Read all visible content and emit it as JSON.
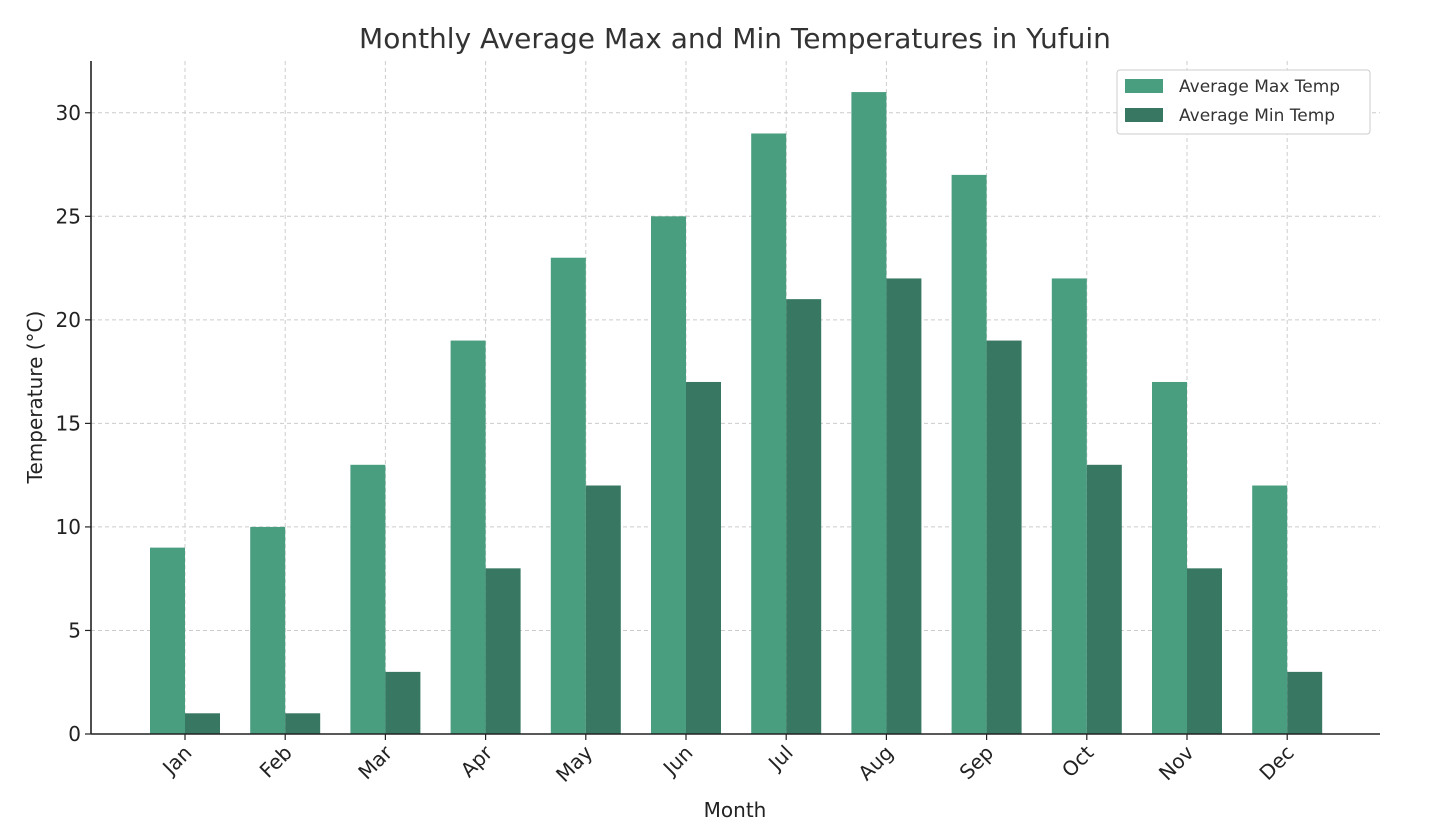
{
  "chart_data": {
    "type": "bar",
    "title": "Monthly Average Max and Min Temperatures in Yufuin",
    "xlabel": "Month",
    "ylabel": "Temperature (°C)",
    "categories": [
      "Jan",
      "Feb",
      "Mar",
      "Apr",
      "May",
      "Jun",
      "Jul",
      "Aug",
      "Sep",
      "Oct",
      "Nov",
      "Dec"
    ],
    "series": [
      {
        "name": "Average Max Temp",
        "color": "#4a9e80",
        "values": [
          9,
          10,
          13,
          19,
          23,
          25,
          29,
          31,
          27,
          22,
          17,
          12
        ]
      },
      {
        "name": "Average Min Temp",
        "color": "#387862",
        "values": [
          1,
          1,
          3,
          8,
          12,
          17,
          21,
          22,
          19,
          13,
          8,
          3
        ]
      }
    ],
    "ylim": [
      0,
      32.5
    ],
    "yticks": [
      0,
      5,
      10,
      15,
      20,
      25,
      30
    ],
    "grid": true,
    "legend_position": "top-right"
  }
}
